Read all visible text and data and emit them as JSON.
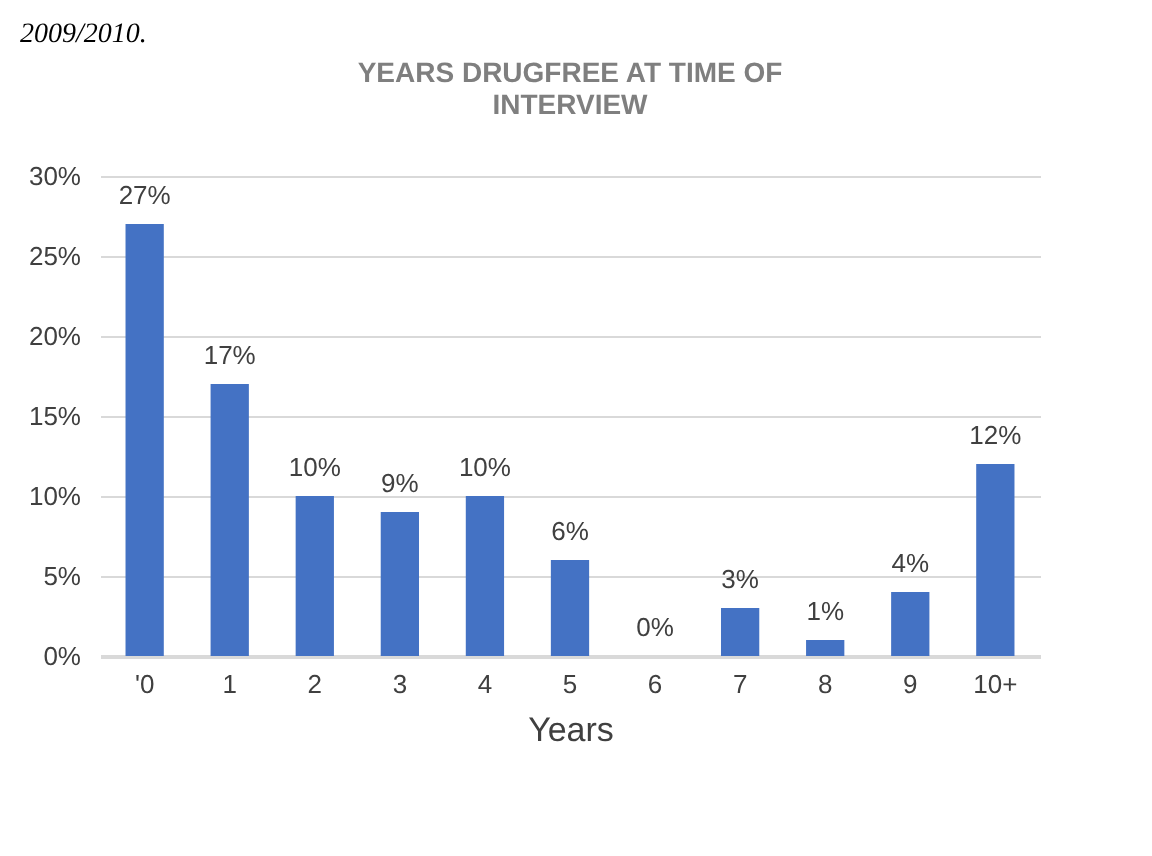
{
  "chart_data": {
    "type": "bar",
    "title": [
      "YEARS DRUGFREE AT TIME OF",
      "INTERVIEW"
    ],
    "xlabel": "Years",
    "categories": [
      "'0",
      "1",
      "2",
      "3",
      "4",
      "5",
      "6",
      "7",
      "8",
      "9",
      "10+"
    ],
    "values": [
      27,
      17,
      10,
      9,
      10,
      6,
      0,
      3,
      1,
      4,
      12
    ],
    "color": "#4472c4",
    "ylim": [
      0,
      30
    ],
    "yticks": [
      {
        "value": 0,
        "label": "0%"
      },
      {
        "value": 5,
        "label": "5%"
      },
      {
        "value": 10,
        "label": "10%"
      },
      {
        "value": 15,
        "label": "15%"
      },
      {
        "value": 20,
        "label": "20%"
      },
      {
        "value": 25,
        "label": "25%"
      },
      {
        "value": 30,
        "label": "30%"
      }
    ],
    "value_labels": [
      "27%",
      "17%",
      "10%",
      "9%",
      "10%",
      "6%",
      "0%",
      "3%",
      "1%",
      "4%",
      "12%"
    ],
    "grid": "y",
    "annotations": [
      "2009/2010."
    ]
  }
}
